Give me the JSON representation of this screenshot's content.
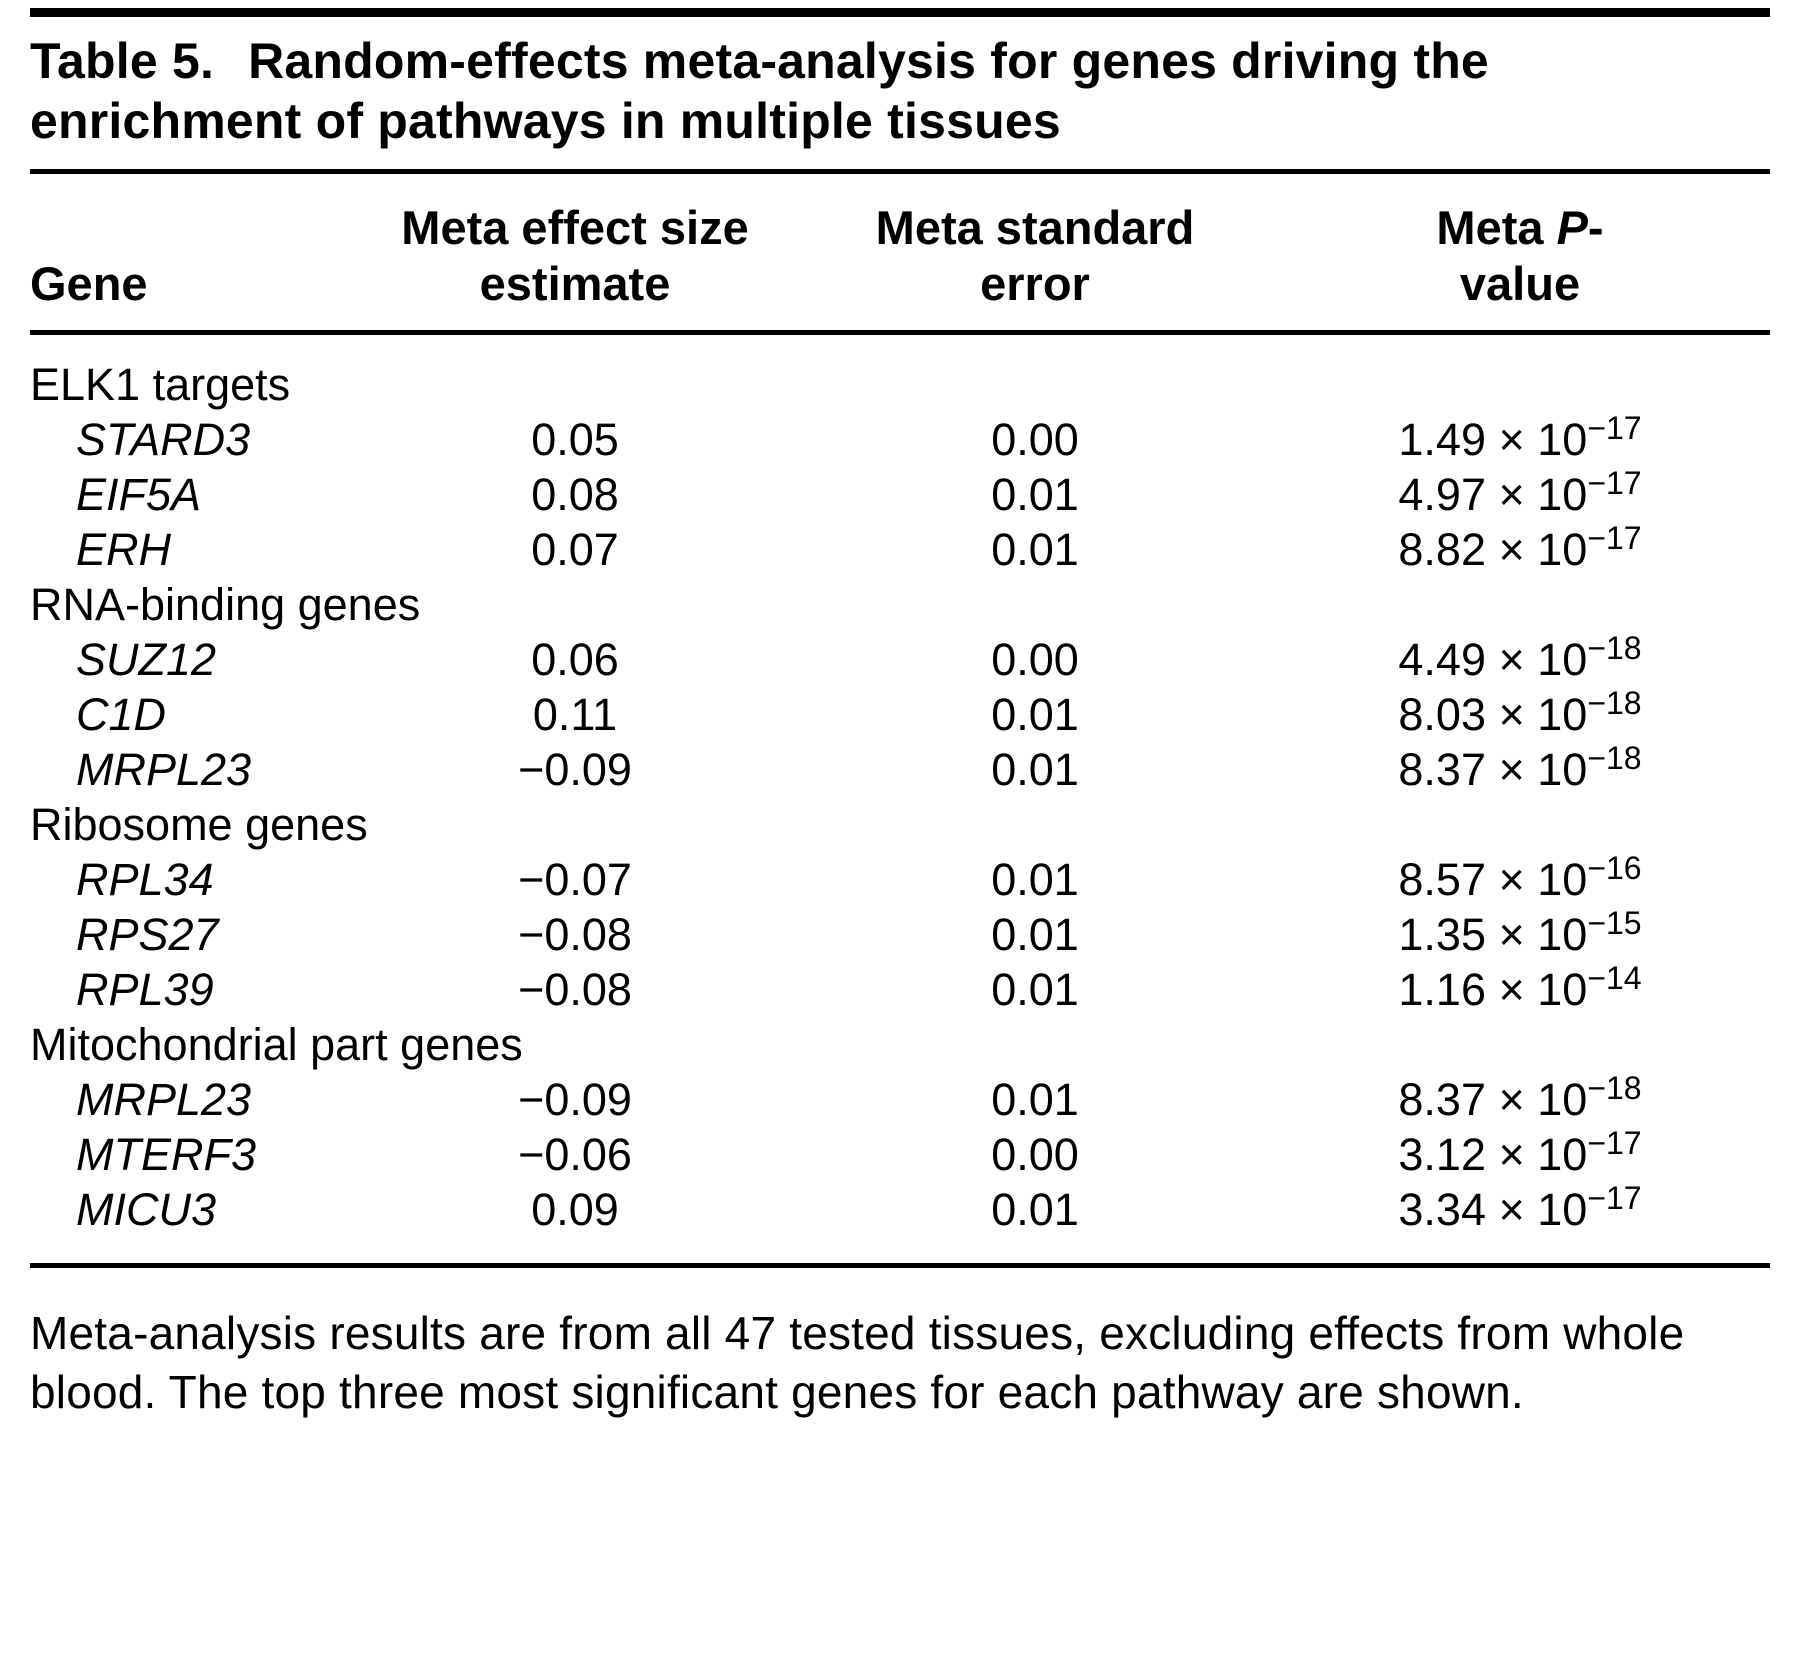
{
  "title": {
    "label": "Table 5.",
    "text": "Random-effects meta-analysis for genes driving the enrichment of pathways in multiple tissues"
  },
  "columns": {
    "gene": "Gene",
    "effect_line1": "Meta effect size",
    "effect_line2": "estimate",
    "se_line1": "Meta standard",
    "se_line2": "error",
    "p_prefix": "Meta ",
    "p_italic": "P",
    "p_suffix": "-",
    "p_line2": "value"
  },
  "groups": [
    {
      "name": "ELK1 targets",
      "rows": [
        {
          "gene": "STARD3",
          "effect": "0.05",
          "se": "0.00",
          "p_base": "1.49 × 10",
          "p_exp": "−17"
        },
        {
          "gene": "EIF5A",
          "effect": "0.08",
          "se": "0.01",
          "p_base": "4.97 × 10",
          "p_exp": "−17"
        },
        {
          "gene": "ERH",
          "effect": "0.07",
          "se": "0.01",
          "p_base": "8.82 × 10",
          "p_exp": "−17"
        }
      ]
    },
    {
      "name": "RNA-binding genes",
      "rows": [
        {
          "gene": "SUZ12",
          "effect": "0.06",
          "se": "0.00",
          "p_base": "4.49 × 10",
          "p_exp": "−18"
        },
        {
          "gene": "C1D",
          "effect": "0.11",
          "se": "0.01",
          "p_base": "8.03 × 10",
          "p_exp": "−18"
        },
        {
          "gene": "MRPL23",
          "effect": "−0.09",
          "se": "0.01",
          "p_base": "8.37 × 10",
          "p_exp": "−18"
        }
      ]
    },
    {
      "name": "Ribosome genes",
      "rows": [
        {
          "gene": "RPL34",
          "effect": "−0.07",
          "se": "0.01",
          "p_base": "8.57 × 10",
          "p_exp": "−16"
        },
        {
          "gene": "RPS27",
          "effect": "−0.08",
          "se": "0.01",
          "p_base": "1.35 × 10",
          "p_exp": "−15"
        },
        {
          "gene": "RPL39",
          "effect": "−0.08",
          "se": "0.01",
          "p_base": "1.16 × 10",
          "p_exp": "−14"
        }
      ]
    },
    {
      "name": "Mitochondrial part genes",
      "rows": [
        {
          "gene": "MRPL23",
          "effect": "−0.09",
          "se": "0.01",
          "p_base": "8.37 × 10",
          "p_exp": "−18"
        },
        {
          "gene": "MTERF3",
          "effect": "−0.06",
          "se": "0.00",
          "p_base": "3.12 × 10",
          "p_exp": "−17"
        },
        {
          "gene": "MICU3",
          "effect": "0.09",
          "se": "0.01",
          "p_base": "3.34 × 10",
          "p_exp": "−17"
        }
      ]
    }
  ],
  "footnote": "Meta-analysis results are from all 47 tested tissues, excluding effects from whole blood. The top three most significant genes for each pathway are shown."
}
